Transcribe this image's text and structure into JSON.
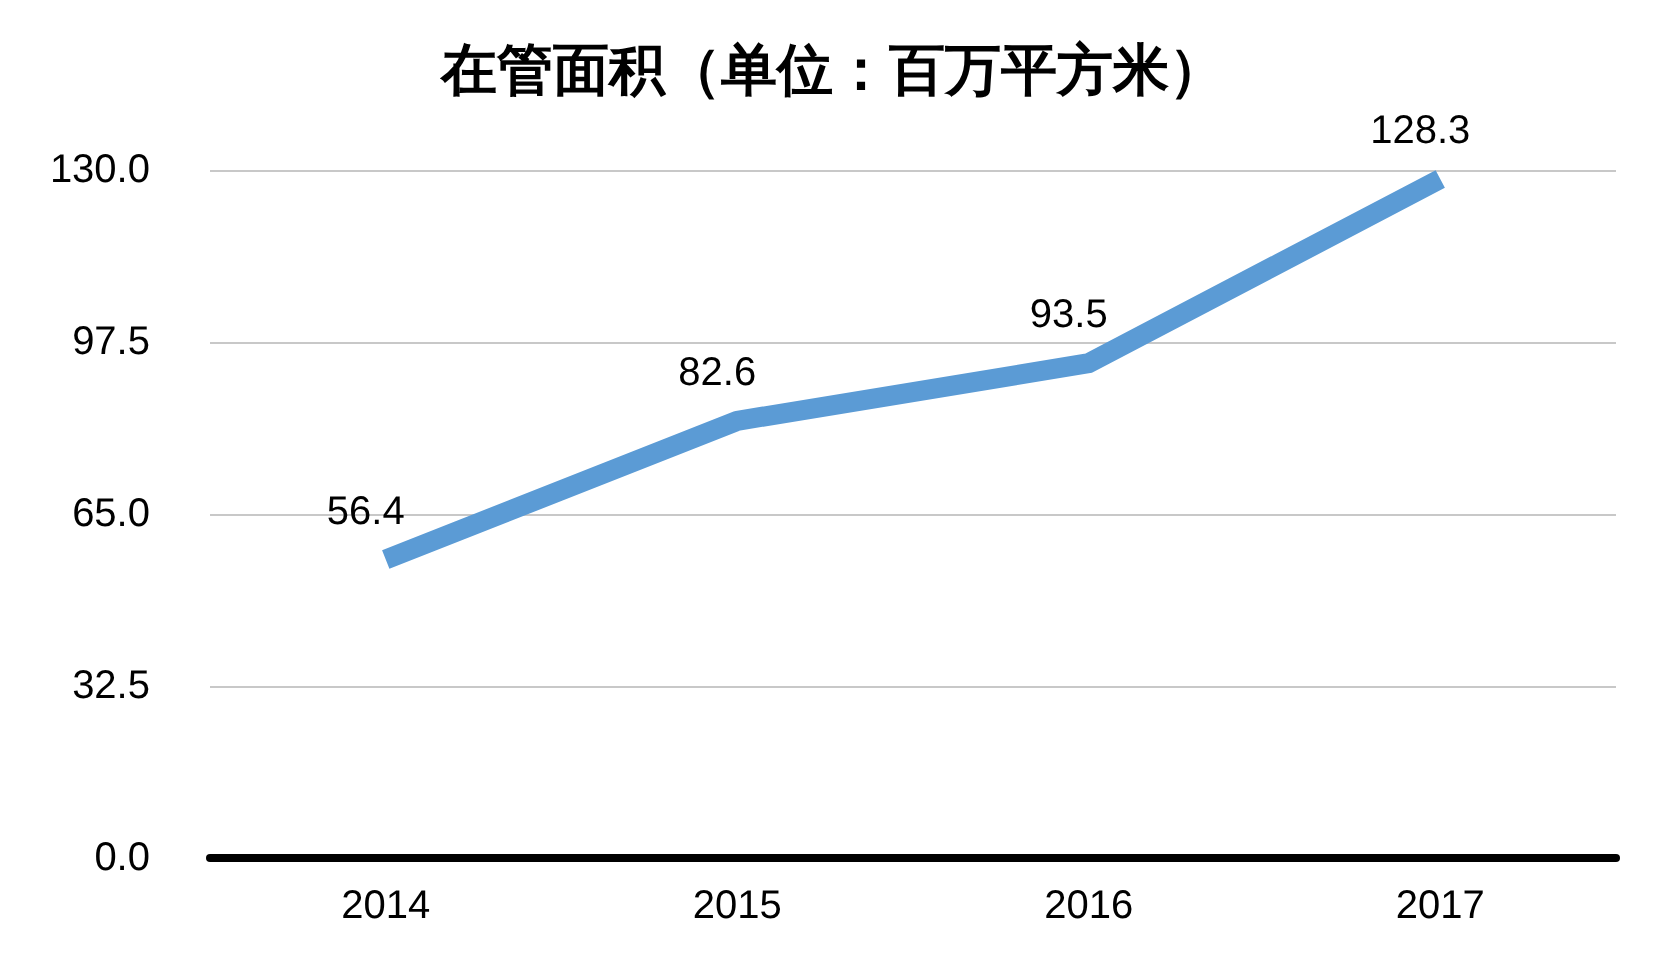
{
  "chart_data": {
    "type": "line",
    "title": "在管面积（单位：百万平方米）",
    "categories": [
      "2014",
      "2015",
      "2016",
      "2017"
    ],
    "series": [
      {
        "color": "#5b9bd5",
        "values": [
          56.4,
          82.6,
          93.5,
          128.3
        ]
      }
    ],
    "ylim": [
      0,
      130
    ],
    "yticks": [
      {
        "value": 0,
        "label": "0.0"
      },
      32.5,
      {
        "value": 65,
        "label": "65.0"
      },
      97.5,
      {
        "value": 130,
        "label": "130.0"
      }
    ],
    "grid": "y",
    "data_labels": true,
    "line_style": "solid"
  }
}
